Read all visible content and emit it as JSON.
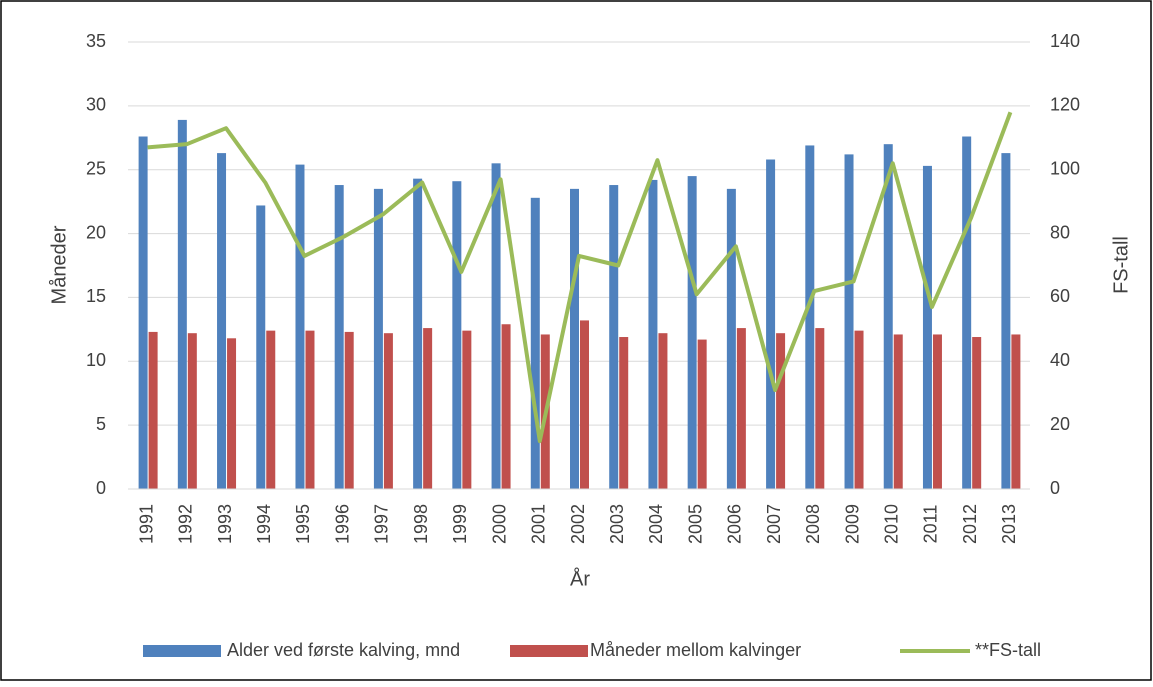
{
  "chart_data": {
    "type": "bar-line",
    "categories": [
      "1991",
      "1992",
      "1993",
      "1994",
      "1995",
      "1996",
      "1997",
      "1998",
      "1999",
      "2000",
      "2001",
      "2002",
      "2003",
      "2004",
      "2005",
      "2006",
      "2007",
      "2008",
      "2009",
      "2010",
      "2011",
      "2012",
      "2013"
    ],
    "series": [
      {
        "name": "Alder ved første kalving, mnd",
        "type": "bar",
        "color": "#4f81bd",
        "values": [
          27.6,
          28.9,
          26.3,
          22.2,
          25.4,
          23.8,
          23.5,
          24.3,
          24.1,
          25.5,
          22.8,
          23.5,
          23.8,
          24.2,
          24.5,
          23.5,
          25.8,
          26.9,
          26.2,
          27.0,
          25.3,
          27.6,
          26.3
        ]
      },
      {
        "name": "Måneder mellom kalvinger",
        "type": "bar",
        "color": "#c0504d",
        "values": [
          12.3,
          12.2,
          11.8,
          12.4,
          12.4,
          12.3,
          12.2,
          12.6,
          12.4,
          12.9,
          12.1,
          13.2,
          11.9,
          12.2,
          11.7,
          12.6,
          12.2,
          12.6,
          12.4,
          12.1,
          12.1,
          11.9,
          12.1
        ]
      },
      {
        "name": "**FS-tall",
        "type": "line",
        "axis": "y2",
        "color": "#9bbb59",
        "values": [
          107,
          108,
          113,
          96,
          73,
          79,
          86,
          96,
          68,
          97,
          15,
          73,
          70,
          103,
          61,
          76,
          31,
          62,
          65,
          102,
          57,
          85,
          118
        ]
      }
    ],
    "ylabel": "Måneder",
    "y2label": "FS-tall",
    "xlabel": "År",
    "ylim": [
      0,
      35
    ],
    "yticks": [
      0,
      5,
      10,
      15,
      20,
      25,
      30,
      35
    ],
    "y2lim": [
      0,
      140
    ],
    "y2ticks": [
      0,
      20,
      40,
      60,
      80,
      100,
      120,
      140
    ],
    "grid": true,
    "legend": "bottom"
  }
}
